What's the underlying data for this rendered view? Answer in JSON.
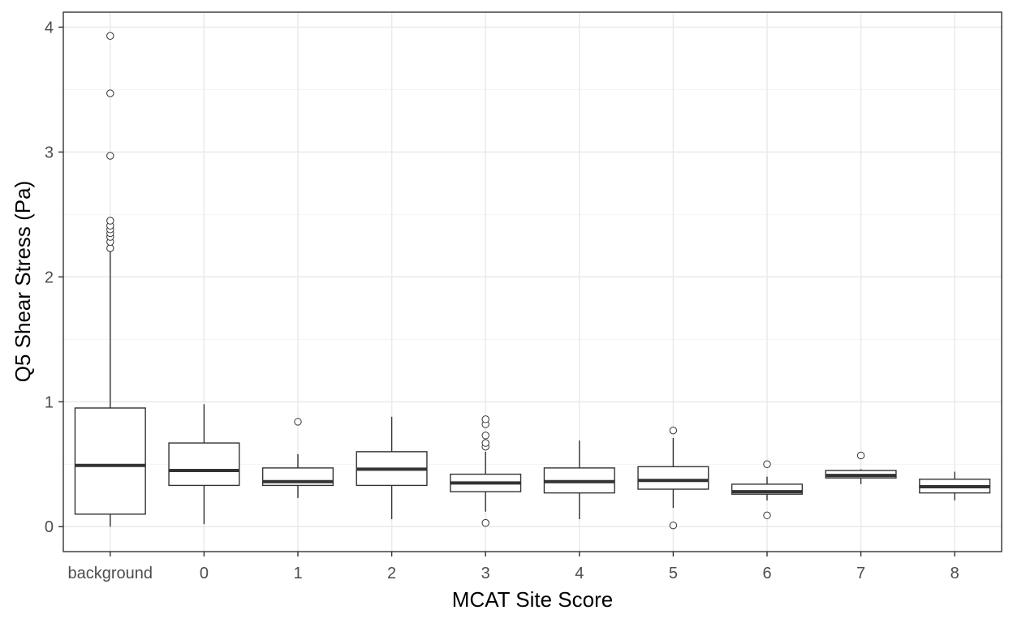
{
  "chart_data": {
    "type": "boxplot",
    "xlabel": "MCAT Site Score",
    "ylabel": "Q5 Shear Stress (Pa)",
    "ylim": [
      -0.2,
      4.12
    ],
    "y_ticks": [
      0,
      1,
      2,
      3,
      4
    ],
    "grid": true,
    "categories": [
      "background",
      "0",
      "1",
      "2",
      "3",
      "4",
      "5",
      "6",
      "7",
      "8"
    ],
    "boxes": [
      {
        "category": "background",
        "whisker_low": 0.0,
        "q1": 0.1,
        "median": 0.49,
        "q3": 0.95,
        "whisker_high": 2.2,
        "outliers": [
          2.23,
          2.28,
          2.32,
          2.35,
          2.38,
          2.41,
          2.45,
          2.97,
          3.47,
          3.93
        ]
      },
      {
        "category": "0",
        "whisker_low": 0.02,
        "q1": 0.33,
        "median": 0.45,
        "q3": 0.67,
        "whisker_high": 0.98,
        "outliers": []
      },
      {
        "category": "1",
        "whisker_low": 0.23,
        "q1": 0.33,
        "median": 0.36,
        "q3": 0.47,
        "whisker_high": 0.58,
        "outliers": [
          0.84
        ]
      },
      {
        "category": "2",
        "whisker_low": 0.06,
        "q1": 0.33,
        "median": 0.46,
        "q3": 0.6,
        "whisker_high": 0.88,
        "outliers": []
      },
      {
        "category": "3",
        "whisker_low": 0.12,
        "q1": 0.28,
        "median": 0.35,
        "q3": 0.42,
        "whisker_high": 0.6,
        "outliers": [
          0.03,
          0.64,
          0.67,
          0.73,
          0.82,
          0.86
        ]
      },
      {
        "category": "4",
        "whisker_low": 0.06,
        "q1": 0.27,
        "median": 0.36,
        "q3": 0.47,
        "whisker_high": 0.69,
        "outliers": []
      },
      {
        "category": "5",
        "whisker_low": 0.15,
        "q1": 0.3,
        "median": 0.37,
        "q3": 0.48,
        "whisker_high": 0.71,
        "outliers": [
          0.01,
          0.77
        ]
      },
      {
        "category": "6",
        "whisker_low": 0.21,
        "q1": 0.26,
        "median": 0.28,
        "q3": 0.34,
        "whisker_high": 0.4,
        "outliers": [
          0.09,
          0.5
        ]
      },
      {
        "category": "7",
        "whisker_low": 0.34,
        "q1": 0.39,
        "median": 0.41,
        "q3": 0.45,
        "whisker_high": 0.46,
        "outliers": [
          0.57
        ]
      },
      {
        "category": "8",
        "whisker_low": 0.21,
        "q1": 0.27,
        "median": 0.32,
        "q3": 0.38,
        "whisker_high": 0.44,
        "outliers": []
      }
    ],
    "colors": {
      "box_fill": "#ffffff",
      "box_stroke": "#333333",
      "grid_major": "#ebebeb",
      "grid_minor": "#f4f4f4",
      "panel_border": "#333333"
    }
  }
}
